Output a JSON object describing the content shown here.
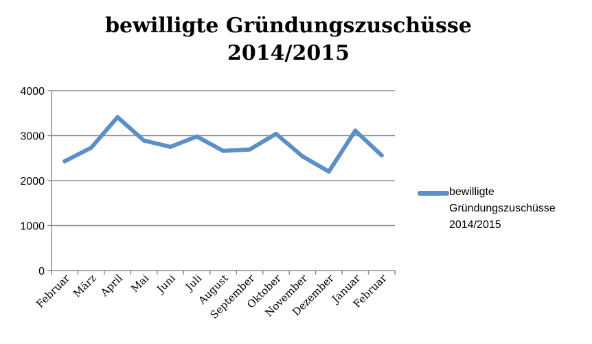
{
  "chart_data": {
    "type": "line",
    "title": "bewilligte Gründungszuschüsse\n2014/2015",
    "categories": [
      "Februar",
      "März",
      "April",
      "Mai",
      "Juni",
      "Juli",
      "August",
      "September",
      "Oktober",
      "November",
      "Dezember",
      "Januar",
      "Februar"
    ],
    "series": [
      {
        "name": "bewilligte Gründungszuschüsse 2014/2015",
        "values": [
          2430,
          2730,
          3410,
          2890,
          2750,
          2980,
          2660,
          2690,
          3040,
          2540,
          2200,
          3110,
          2560
        ],
        "color": "#5b8fc7"
      }
    ],
    "ylim": [
      0,
      4000
    ],
    "yticks": [
      "0",
      "1000",
      "2000",
      "3000",
      "4000"
    ],
    "grid": true,
    "legend_position": "right"
  },
  "legend": {
    "label": "bewilligte\nGründungszuschüsse\n2014/2015"
  }
}
